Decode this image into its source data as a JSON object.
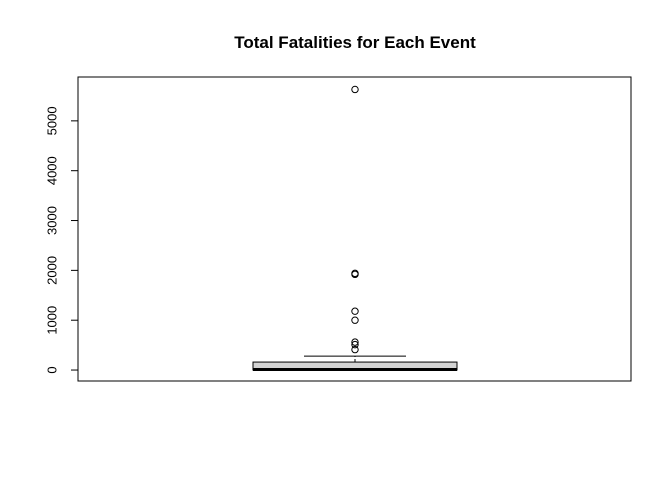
{
  "chart_data": {
    "type": "boxplot",
    "title": "Total Fatalities for Each Event",
    "xlabel": "",
    "ylabel": "",
    "ylim": [
      -220,
      5880
    ],
    "yticks": [
      0,
      1000,
      2000,
      3000,
      4000,
      5000
    ],
    "box": {
      "min": 0,
      "q1": 0,
      "median": 10,
      "q3": 160,
      "whisker_high": 280,
      "fill": "#d3d3d3"
    },
    "outliers": [
      410,
      510,
      560,
      1000,
      1180,
      1920,
      1940,
      5630
    ],
    "grid": false,
    "legend": "none"
  }
}
